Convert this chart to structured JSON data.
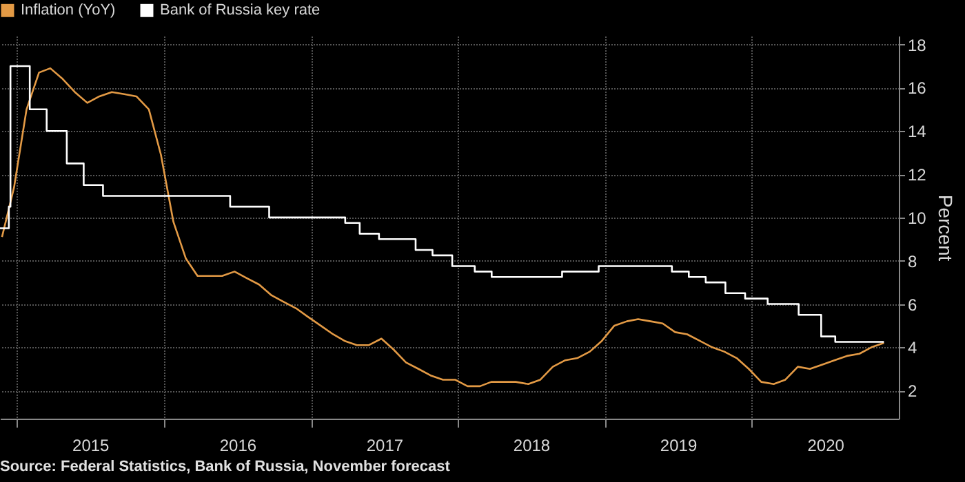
{
  "chart_data": {
    "type": "line",
    "annotations": [
      "Source: Federal Statistics, Bank of Russia, November forecast"
    ],
    "ylabel": "Percent",
    "xlim": [
      "2014-11-20",
      "2021-01-01"
    ],
    "ylim": [
      0.7,
      18.4
    ],
    "yticks": [
      2,
      4,
      6,
      8,
      10,
      12,
      14,
      16,
      18
    ],
    "xticks": [
      {
        "value": "2015-01-01",
        "label": null
      },
      {
        "value": "2015-07-02",
        "label": "2015"
      },
      {
        "value": "2016-01-01",
        "label": null
      },
      {
        "value": "2016-07-02",
        "label": "2016"
      },
      {
        "value": "2017-01-01",
        "label": null
      },
      {
        "value": "2017-07-02",
        "label": "2017"
      },
      {
        "value": "2018-01-01",
        "label": null
      },
      {
        "value": "2018-07-02",
        "label": "2018"
      },
      {
        "value": "2019-01-01",
        "label": null
      },
      {
        "value": "2019-07-02",
        "label": "2019"
      },
      {
        "value": "2020-01-01",
        "label": null
      },
      {
        "value": "2020-07-02",
        "label": "2020"
      }
    ],
    "grid": true,
    "legend": "top left",
    "series": [
      {
        "name": "Inflation (YoY)",
        "type": "line",
        "color": "#e39a45",
        "x": [
          "2014-11-25",
          "2014-12-25",
          "2015-01-25",
          "2015-02-25",
          "2015-03-25",
          "2015-04-25",
          "2015-05-25",
          "2015-06-25",
          "2015-07-25",
          "2015-08-25",
          "2015-09-25",
          "2015-10-25",
          "2015-11-25",
          "2015-12-25",
          "2016-01-25",
          "2016-02-25",
          "2016-03-25",
          "2016-04-25",
          "2016-05-25",
          "2016-06-25",
          "2016-07-25",
          "2016-08-25",
          "2016-09-25",
          "2016-10-25",
          "2016-11-25",
          "2016-12-25",
          "2017-01-25",
          "2017-02-25",
          "2017-03-25",
          "2017-04-25",
          "2017-05-25",
          "2017-06-25",
          "2017-07-25",
          "2017-08-25",
          "2017-09-25",
          "2017-10-25",
          "2017-11-25",
          "2017-12-25",
          "2018-01-25",
          "2018-02-25",
          "2018-03-25",
          "2018-04-25",
          "2018-05-25",
          "2018-06-25",
          "2018-07-25",
          "2018-08-25",
          "2018-09-25",
          "2018-10-25",
          "2018-11-25",
          "2018-12-25",
          "2019-01-25",
          "2019-02-25",
          "2019-03-25",
          "2019-04-25",
          "2019-05-25",
          "2019-06-25",
          "2019-07-25",
          "2019-08-25",
          "2019-09-25",
          "2019-10-25",
          "2019-11-25",
          "2019-12-25",
          "2020-01-25",
          "2020-02-25",
          "2020-03-25",
          "2020-04-25",
          "2020-05-25",
          "2020-06-25",
          "2020-07-25",
          "2020-08-25",
          "2020-09-25",
          "2020-10-25",
          "2020-11-25"
        ],
        "values": [
          9.1,
          11.4,
          15.0,
          16.7,
          16.9,
          16.4,
          15.8,
          15.3,
          15.6,
          15.8,
          15.7,
          15.6,
          15.0,
          12.9,
          9.8,
          8.1,
          7.3,
          7.3,
          7.3,
          7.5,
          7.2,
          6.9,
          6.4,
          6.1,
          5.8,
          5.4,
          5.0,
          4.6,
          4.3,
          4.1,
          4.1,
          4.4,
          3.9,
          3.3,
          3.0,
          2.7,
          2.5,
          2.5,
          2.2,
          2.2,
          2.4,
          2.4,
          2.4,
          2.3,
          2.5,
          3.1,
          3.4,
          3.5,
          3.8,
          4.3,
          5.0,
          5.2,
          5.3,
          5.2,
          5.1,
          4.7,
          4.6,
          4.3,
          4.0,
          3.8,
          3.5,
          3.0,
          2.4,
          2.3,
          2.5,
          3.1,
          3.0,
          3.2,
          3.4,
          3.6,
          3.7,
          4.0,
          4.2
        ]
      },
      {
        "name": "Bank of Russia key rate",
        "type": "step",
        "color": "#ffffff",
        "x": [
          "2014-11-20",
          "2014-12-12",
          "2014-12-16",
          "2015-02-02",
          "2015-03-16",
          "2015-05-05",
          "2015-06-16",
          "2015-08-03",
          "2016-06-14",
          "2016-09-19",
          "2017-03-27",
          "2017-05-02",
          "2017-06-19",
          "2017-09-18",
          "2017-10-30",
          "2017-12-18",
          "2018-02-12",
          "2018-03-26",
          "2018-09-17",
          "2018-12-17",
          "2019-06-17",
          "2019-07-29",
          "2019-09-09",
          "2019-10-28",
          "2019-12-16",
          "2020-02-10",
          "2020-04-27",
          "2020-06-22",
          "2020-07-27",
          "2020-11-25"
        ],
        "values": [
          9.5,
          10.5,
          17,
          15,
          14,
          12.5,
          11.5,
          11,
          10.5,
          10,
          9.75,
          9.25,
          9,
          8.5,
          8.25,
          7.75,
          7.5,
          7.25,
          7.5,
          7.75,
          7.5,
          7.25,
          7,
          6.5,
          6.25,
          6,
          5.5,
          4.5,
          4.25,
          4.25
        ]
      }
    ]
  }
}
